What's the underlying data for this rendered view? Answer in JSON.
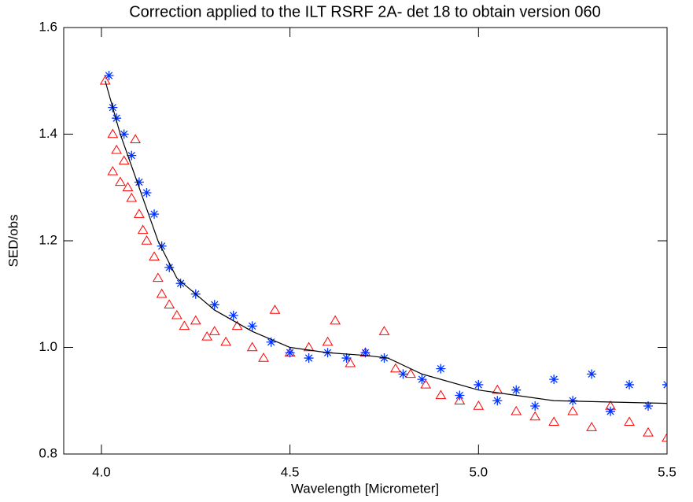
{
  "chart_data": {
    "type": "scatter",
    "title": "Correction applied to the ILT RSRF 2A- det  18 to obtain version 060",
    "x_label": "Wavelength [Micrometer]",
    "y_label": "SED/obs",
    "xlim": [
      3.9,
      5.5
    ],
    "ylim": [
      0.8,
      1.6
    ],
    "xticks": [
      {
        "value": 4.0,
        "label": "4.0"
      },
      4.5,
      {
        "value": 5.0,
        "label": "5.0"
      },
      5.5
    ],
    "yticks": [
      0.8,
      {
        "value": 1.0,
        "label": "1.0"
      },
      1.2,
      1.4,
      1.6
    ],
    "grid": false,
    "series": [
      {
        "marker": "triangle",
        "color": "#ff0000",
        "x": [
          4.01,
          4.03,
          4.03,
          4.04,
          4.05,
          4.06,
          4.07,
          4.08,
          4.09,
          4.1,
          4.11,
          4.12,
          4.14,
          4.15,
          4.16,
          4.18,
          4.2,
          4.22,
          4.25,
          4.28,
          4.3,
          4.33,
          4.36,
          4.4,
          4.43,
          4.46,
          4.5,
          4.55,
          4.6,
          4.62,
          4.66,
          4.7,
          4.75,
          4.78,
          4.82,
          4.86,
          4.9,
          4.95,
          5.0,
          5.05,
          5.1,
          5.15,
          5.2,
          5.25,
          5.3,
          5.35,
          5.4,
          5.45,
          5.5
        ],
        "values": [
          1.5,
          1.4,
          1.33,
          1.37,
          1.31,
          1.35,
          1.3,
          1.28,
          1.39,
          1.25,
          1.22,
          1.2,
          1.17,
          1.13,
          1.1,
          1.08,
          1.06,
          1.04,
          1.05,
          1.02,
          1.03,
          1.01,
          1.04,
          1.0,
          0.98,
          1.07,
          0.99,
          1.0,
          1.01,
          1.05,
          0.97,
          0.99,
          1.03,
          0.96,
          0.95,
          0.93,
          0.91,
          0.9,
          0.89,
          0.92,
          0.88,
          0.87,
          0.86,
          0.88,
          0.85,
          0.89,
          0.86,
          0.84,
          0.83
        ]
      },
      {
        "marker": "asterisk",
        "color": "#0033ff",
        "x": [
          4.02,
          4.03,
          4.04,
          4.06,
          4.08,
          4.1,
          4.12,
          4.14,
          4.16,
          4.18,
          4.21,
          4.25,
          4.3,
          4.35,
          4.4,
          4.45,
          4.5,
          4.55,
          4.6,
          4.65,
          4.7,
          4.75,
          4.8,
          4.85,
          4.9,
          4.95,
          5.0,
          5.05,
          5.1,
          5.15,
          5.2,
          5.25,
          5.3,
          5.35,
          5.4,
          5.45,
          5.5
        ],
        "values": [
          1.51,
          1.45,
          1.43,
          1.4,
          1.36,
          1.31,
          1.29,
          1.25,
          1.19,
          1.15,
          1.12,
          1.1,
          1.08,
          1.06,
          1.04,
          1.01,
          0.99,
          0.98,
          0.99,
          0.98,
          0.99,
          0.98,
          0.95,
          0.94,
          0.96,
          0.91,
          0.93,
          0.9,
          0.92,
          0.89,
          0.94,
          0.9,
          0.95,
          0.88,
          0.93,
          0.89,
          0.93
        ]
      },
      {
        "marker": "line",
        "color": "#000000",
        "x": [
          4.01,
          4.05,
          4.1,
          4.15,
          4.2,
          4.3,
          4.4,
          4.5,
          4.6,
          4.7,
          4.76,
          4.85,
          5.0,
          5.2,
          5.5
        ],
        "values": [
          1.5,
          1.4,
          1.3,
          1.2,
          1.13,
          1.07,
          1.03,
          1.0,
          0.99,
          0.985,
          0.98,
          0.95,
          0.92,
          0.9,
          0.895
        ]
      }
    ]
  }
}
